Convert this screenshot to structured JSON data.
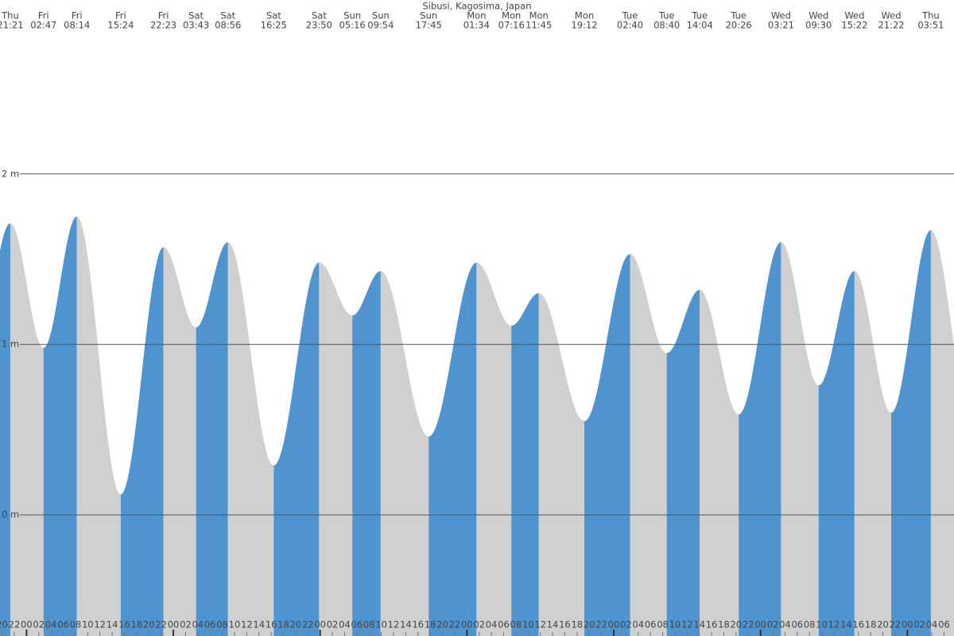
{
  "chart_data": {
    "type": "tide",
    "title": "Sibusi, Kagosima, Japan",
    "days": [
      "Thu",
      "Fri",
      "Fri",
      "Fri",
      "Fri",
      "Sat",
      "Sat",
      "Sat",
      "Sat",
      "Sun",
      "Sun",
      "Sun",
      "Mon",
      "Mon",
      "Mon",
      "Mon",
      "Tue",
      "Tue",
      "Tue",
      "Tue",
      "Wed",
      "Wed",
      "Wed",
      "Wed",
      "Thu"
    ],
    "times": [
      "21:21",
      "02:47",
      "08:14",
      "15:24",
      "22:23",
      "03:43",
      "08:56",
      "16:25",
      "23:50",
      "05:16",
      "09:54",
      "17:45",
      "01:34",
      "07:16",
      "11:45",
      "19:12",
      "02:40",
      "08:40",
      "14:04",
      "20:26",
      "03:21",
      "09:30",
      "15:22",
      "21:22",
      "03:51"
    ],
    "values": [
      1.71,
      0.98,
      1.75,
      0.12,
      1.57,
      1.1,
      1.6,
      0.29,
      1.48,
      1.17,
      1.43,
      0.46,
      1.48,
      1.11,
      1.3,
      0.55,
      1.53,
      0.95,
      1.32,
      0.59,
      1.6,
      0.76,
      1.43,
      0.6,
      1.67
    ],
    "colors": {
      "rising": "#4f93cf",
      "falling": "#d0d0d0"
    },
    "ylim": [
      -0.71,
      3.02
    ],
    "yticks": [
      {
        "value": 0,
        "label": "0 m"
      },
      {
        "value": 1,
        "label": "1 m"
      },
      {
        "value": 2,
        "label": "2 m"
      }
    ],
    "hour_labels": [
      "20",
      "22",
      "00",
      "02",
      "04",
      "06",
      "08",
      "10",
      "12",
      "14",
      "16",
      "18",
      "20",
      "22",
      "00",
      "02",
      "04",
      "06",
      "08",
      "10",
      "12",
      "14",
      "16",
      "18",
      "20",
      "22",
      "00",
      "02",
      "04",
      "06",
      "08",
      "10",
      "12",
      "14",
      "16",
      "18",
      "20",
      "22",
      "00",
      "02",
      "04",
      "06",
      "08",
      "10",
      "12",
      "14",
      "16",
      "18",
      "20",
      "22",
      "00",
      "02",
      "04",
      "06",
      "08",
      "10",
      "12",
      "14",
      "16",
      "18",
      "20",
      "22",
      "00",
      "02",
      "04",
      "06",
      "08",
      "10",
      "12",
      "14",
      "16",
      "18",
      "20",
      "22",
      "00",
      "02",
      "04",
      "06"
    ]
  }
}
